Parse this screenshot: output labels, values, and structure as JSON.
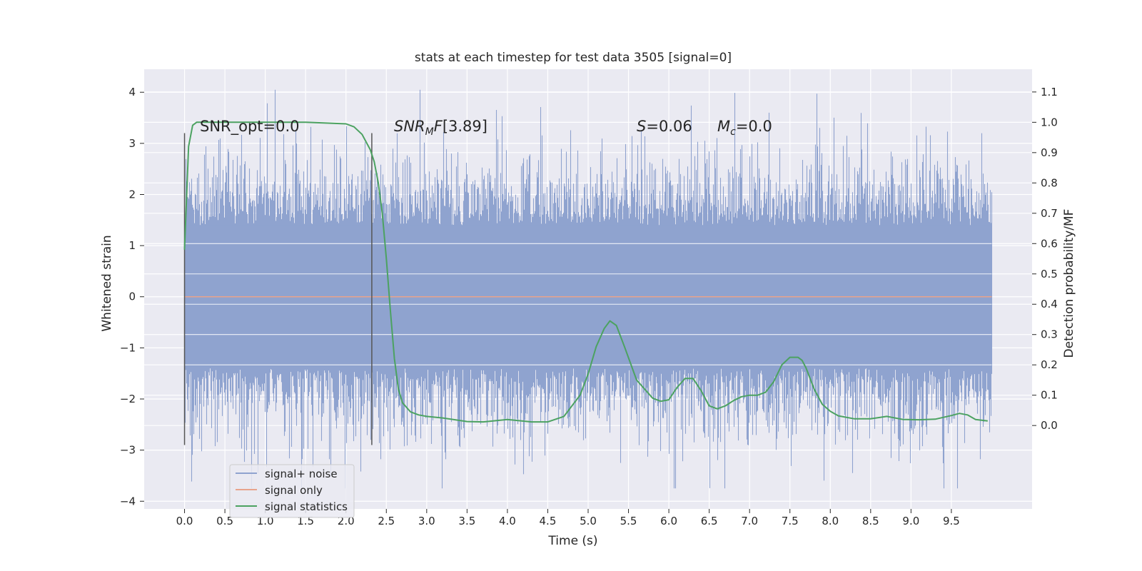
{
  "chart_data": {
    "type": "line",
    "title": "stats at each timestep for test data 3505 [signal=0]",
    "xlabel": "Time (s)",
    "ylabel": "Whitened strain",
    "ylabel_right": "Detection probability/MF",
    "xlim": [
      -0.5,
      10.5
    ],
    "ylim": [
      -4.15,
      4.45
    ],
    "ylim_right": [
      -0.275,
      1.175
    ],
    "x_ticks": [
      0.0,
      0.5,
      1.0,
      1.5,
      2.0,
      2.5,
      3.0,
      3.5,
      4.0,
      4.5,
      5.0,
      5.5,
      6.0,
      6.5,
      7.0,
      7.5,
      8.0,
      8.5,
      9.0,
      9.5
    ],
    "x_tick_labels": [
      "0.0",
      "0.5",
      "1.0",
      "1.5",
      "2.0",
      "2.5",
      "3.0",
      "3.5",
      "4.0",
      "4.5",
      "5.0",
      "5.5",
      "6.0",
      "6.5",
      "7.0",
      "7.5",
      "8.0",
      "8.5",
      "9.0",
      "9.5"
    ],
    "y_ticks": [
      -4,
      -3,
      -2,
      -1,
      0,
      1,
      2,
      3,
      4
    ],
    "y_tick_labels": [
      "−4",
      "−3",
      "−2",
      "−1",
      "0",
      "1",
      "2",
      "3",
      "4"
    ],
    "y_ticks_right": [
      0.0,
      0.1,
      0.2,
      0.3,
      0.4,
      0.5,
      0.6,
      0.7,
      0.8,
      0.9,
      1.0,
      1.1
    ],
    "y_tick_labels_right": [
      "0.0",
      "0.1",
      "0.2",
      "0.3",
      "0.4",
      "0.5",
      "0.6",
      "0.7",
      "0.8",
      "0.9",
      "1.0",
      "1.1"
    ],
    "grid": true,
    "legend_placement": "lower-left",
    "annotations": {
      "snr_opt": "SNR_opt=0.0",
      "snr_mf": "[3.89]",
      "s": "=0.06",
      "mc": "=0.0"
    },
    "vertical_markers": [
      {
        "x": 0.0,
        "y_range": [
          -2.9,
          3.2
        ]
      },
      {
        "x": 2.32,
        "y_range": [
          -2.9,
          3.2
        ]
      }
    ],
    "series": [
      {
        "name": "signal+ noise",
        "color": "#8fa3cf",
        "x_range": [
          0.0,
          10.0
        ],
        "envelope_dense": [
          -1.4,
          1.4
        ],
        "envelope_extremes": [
          -3.75,
          4.05
        ],
        "description_of_values": "white noise, std ~0.8"
      },
      {
        "name": "signal only",
        "color": "#e8a38c",
        "x": [
          0.0,
          10.0
        ],
        "y": [
          0.0,
          0.0
        ]
      },
      {
        "name": "signal statistics",
        "color": "#4ca261",
        "axis": "right",
        "x": [
          0.0,
          0.05,
          0.1,
          0.15,
          0.2,
          0.3,
          0.5,
          1.0,
          1.5,
          2.0,
          2.1,
          2.2,
          2.3,
          2.35,
          2.4,
          2.45,
          2.5,
          2.55,
          2.6,
          2.65,
          2.7,
          2.8,
          2.9,
          3.0,
          3.2,
          3.5,
          3.7,
          4.0,
          4.3,
          4.5,
          4.7,
          4.9,
          5.0,
          5.1,
          5.2,
          5.27,
          5.35,
          5.45,
          5.6,
          5.7,
          5.8,
          5.9,
          6.0,
          6.1,
          6.2,
          6.3,
          6.4,
          6.5,
          6.6,
          6.7,
          6.8,
          6.9,
          7.0,
          7.1,
          7.2,
          7.3,
          7.4,
          7.5,
          7.6,
          7.65,
          7.7,
          7.8,
          7.9,
          8.0,
          8.1,
          8.3,
          8.5,
          8.7,
          8.9,
          9.1,
          9.3,
          9.5,
          9.6,
          9.7,
          9.8,
          9.95
        ],
        "y": [
          0.58,
          0.92,
          0.99,
          1.0,
          1.0,
          1.0,
          1.0,
          1.0,
          1.0,
          0.995,
          0.985,
          0.96,
          0.91,
          0.87,
          0.8,
          0.7,
          0.55,
          0.38,
          0.22,
          0.12,
          0.075,
          0.045,
          0.035,
          0.03,
          0.025,
          0.013,
          0.012,
          0.02,
          0.012,
          0.012,
          0.03,
          0.1,
          0.17,
          0.26,
          0.32,
          0.345,
          0.33,
          0.26,
          0.15,
          0.12,
          0.09,
          0.08,
          0.085,
          0.125,
          0.155,
          0.155,
          0.115,
          0.065,
          0.055,
          0.065,
          0.082,
          0.095,
          0.1,
          0.1,
          0.11,
          0.145,
          0.2,
          0.225,
          0.225,
          0.215,
          0.19,
          0.12,
          0.07,
          0.047,
          0.032,
          0.022,
          0.022,
          0.03,
          0.02,
          0.019,
          0.021,
          0.033,
          0.04,
          0.035,
          0.02,
          0.015
        ]
      }
    ]
  }
}
